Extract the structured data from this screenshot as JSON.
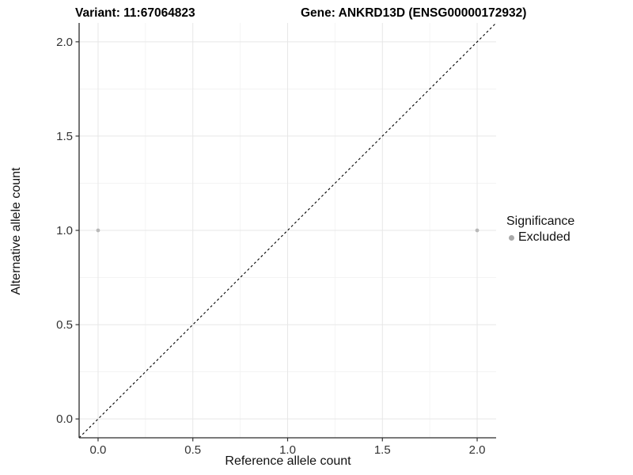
{
  "chart_data": {
    "type": "scatter",
    "title_left": "Variant: 11:67064823",
    "title_right": "Gene: ANKRD13D (ENSG00000172932)",
    "xlabel": "Reference allele count",
    "ylabel": "Alternative allele count",
    "xlim": [
      -0.1,
      2.1
    ],
    "ylim": [
      -0.1,
      2.1
    ],
    "xticks": [
      0.0,
      0.5,
      1.0,
      1.5,
      2.0
    ],
    "yticks": [
      0.0,
      0.5,
      1.0,
      1.5,
      2.0
    ],
    "tick_label_decimals": 1,
    "grid": {
      "major": true,
      "minor": true,
      "minor_step": 0.25
    },
    "series": [
      {
        "name": "Excluded",
        "marker_color": "#b9b9b9",
        "marker_radius_px": 2.4,
        "points": [
          [
            0.0,
            1.0
          ],
          [
            2.0,
            1.0
          ]
        ]
      }
    ],
    "reference_line": {
      "slope": 1,
      "intercept": 0,
      "style": "dashed",
      "color": "#000000"
    },
    "legend": {
      "title": "Significance",
      "position": "right",
      "items": [
        {
          "label": "Excluded",
          "marker_color": "#a9a9a9"
        }
      ]
    },
    "colors": {
      "background": "#ffffff",
      "grid_major": "#e7e7e7",
      "grid_minor": "#f3f3f3",
      "axis_line": "#2b2b2b",
      "tick_mark": "#333333",
      "tick_label": "#333333"
    }
  }
}
